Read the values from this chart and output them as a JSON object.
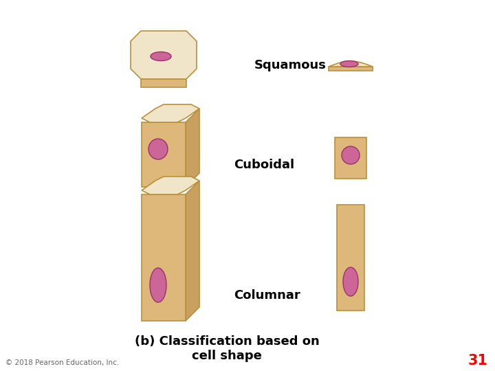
{
  "bg_color": "#ffffff",
  "cell_fill": "#ddb87a",
  "cell_fill_light": "#e8c98a",
  "cell_edge": "#b8903a",
  "cell_right_face": "#c9a060",
  "nucleus_color": "#cc6699",
  "nucleus_edge": "#993366",
  "top_fill": "#f0e5c8",
  "top_edge": "#b8903a",
  "labels": {
    "squamous": "Squamous",
    "cuboidal": "Cuboidal",
    "columnar": "Columnar",
    "subtitle": "(b) Classification based on\ncell shape",
    "copyright": "© 2018 Pearson Education, Inc.",
    "page": "31"
  },
  "label_fontsize": 13,
  "subtitle_fontsize": 13,
  "copyright_fontsize": 7.5,
  "page_fontsize": 15
}
